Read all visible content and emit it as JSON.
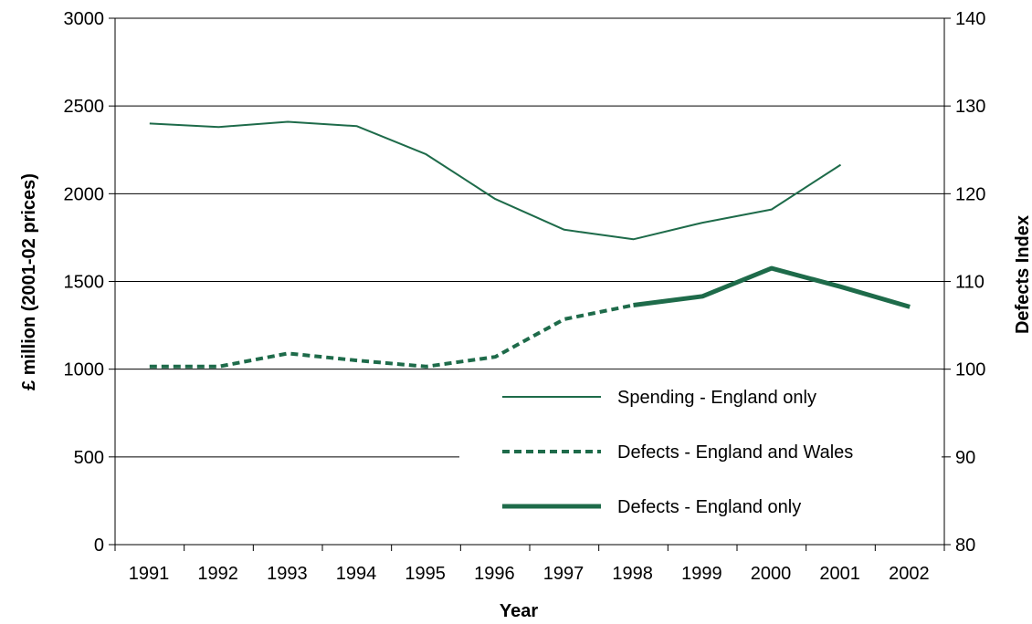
{
  "colors": {
    "series": "#1e6b4a",
    "grid": "#000000",
    "axis": "#000000"
  },
  "chart_data": {
    "type": "line",
    "x_tick_labels": [
      "1991",
      "1992",
      "1993",
      "1994",
      "1995",
      "1996",
      "1997",
      "1998",
      "1999",
      "2000",
      "2001",
      "2002"
    ],
    "x_range": [
      1991,
      2002
    ],
    "xlabel": "Year",
    "ylabel_left": "£ million (2001-02 prices)",
    "ylabel_right": "Defects Index",
    "ylim_left": [
      0,
      3000
    ],
    "ylim_right": [
      80,
      140
    ],
    "yticks_left": [
      0,
      500,
      1000,
      1500,
      2000,
      2500,
      3000
    ],
    "yticks_right": [
      80,
      90,
      100,
      110,
      120,
      130,
      140
    ],
    "grid": "horizontal",
    "legend_position": "bottom-right",
    "series": [
      {
        "name": "Spending - England only",
        "axis": "left",
        "style": "solid-thin",
        "points": [
          {
            "x": 1991.5,
            "y": 2400
          },
          {
            "x": 1992.5,
            "y": 2380
          },
          {
            "x": 1993.5,
            "y": 2410
          },
          {
            "x": 1994.5,
            "y": 2385
          },
          {
            "x": 1995.5,
            "y": 2225
          },
          {
            "x": 1996.5,
            "y": 1970
          },
          {
            "x": 1997.5,
            "y": 1795
          },
          {
            "x": 1998.5,
            "y": 1740
          },
          {
            "x": 1999.5,
            "y": 1835
          },
          {
            "x": 2000.5,
            "y": 1910
          },
          {
            "x": 2001.5,
            "y": 2165
          }
        ]
      },
      {
        "name": "Defects - England and Wales",
        "axis": "right",
        "style": "dashed",
        "points": [
          {
            "x": 1991.5,
            "y": 100.3
          },
          {
            "x": 1992.5,
            "y": 100.3
          },
          {
            "x": 1993.5,
            "y": 101.8
          },
          {
            "x": 1994.5,
            "y": 101.0
          },
          {
            "x": 1995.5,
            "y": 100.3
          },
          {
            "x": 1996.5,
            "y": 101.4
          },
          {
            "x": 1997.5,
            "y": 105.7
          },
          {
            "x": 1998.5,
            "y": 107.3
          }
        ]
      },
      {
        "name": "Defects - England only",
        "axis": "right",
        "style": "solid-thick",
        "points": [
          {
            "x": 1998.5,
            "y": 107.3
          },
          {
            "x": 1999.5,
            "y": 108.3
          },
          {
            "x": 2000.5,
            "y": 111.5
          },
          {
            "x": 2001.5,
            "y": 109.4
          },
          {
            "x": 2002.5,
            "y": 107.1
          }
        ]
      }
    ]
  }
}
